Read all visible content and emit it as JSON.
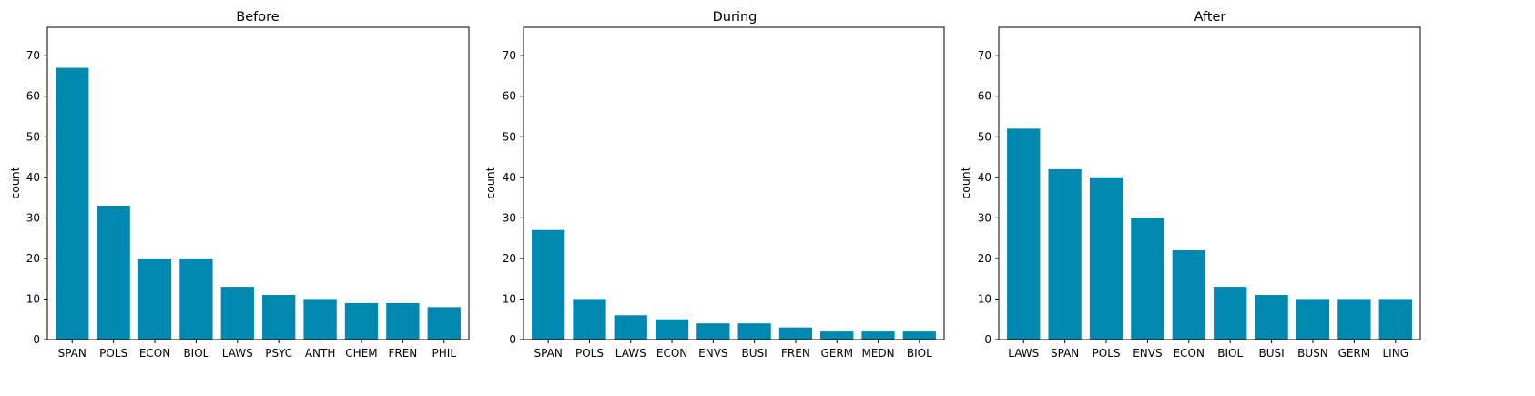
{
  "chart_data": [
    {
      "type": "bar",
      "title": "Before",
      "ylabel": "count",
      "xlabel": "",
      "ylim": [
        0,
        77
      ],
      "yticks": [
        0,
        10,
        20,
        30,
        40,
        50,
        60,
        70
      ],
      "categories": [
        "SPAN",
        "POLS",
        "ECON",
        "BIOL",
        "LAWS",
        "PSYC",
        "ANTH",
        "CHEM",
        "FREN",
        "PHIL"
      ],
      "values": [
        67,
        33,
        20,
        20,
        13,
        11,
        10,
        9,
        9,
        8
      ],
      "color": "#0088b0"
    },
    {
      "type": "bar",
      "title": "During",
      "ylabel": "count",
      "xlabel": "",
      "ylim": [
        0,
        77
      ],
      "yticks": [
        0,
        10,
        20,
        30,
        40,
        50,
        60,
        70
      ],
      "categories": [
        "SPAN",
        "POLS",
        "LAWS",
        "ECON",
        "ENVS",
        "BUSI",
        "FREN",
        "GERM",
        "MEDN",
        "BIOL"
      ],
      "values": [
        27,
        10,
        6,
        5,
        4,
        4,
        3,
        2,
        2,
        2
      ],
      "color": "#0088b0"
    },
    {
      "type": "bar",
      "title": "After",
      "ylabel": "count",
      "xlabel": "",
      "ylim": [
        0,
        77
      ],
      "yticks": [
        0,
        10,
        20,
        30,
        40,
        50,
        60,
        70
      ],
      "categories": [
        "LAWS",
        "SPAN",
        "POLS",
        "ENVS",
        "ECON",
        "BIOL",
        "BUSI",
        "BUSN",
        "GERM",
        "LING"
      ],
      "values": [
        52,
        42,
        40,
        30,
        22,
        13,
        11,
        10,
        10,
        10
      ],
      "color": "#0088b0"
    }
  ]
}
